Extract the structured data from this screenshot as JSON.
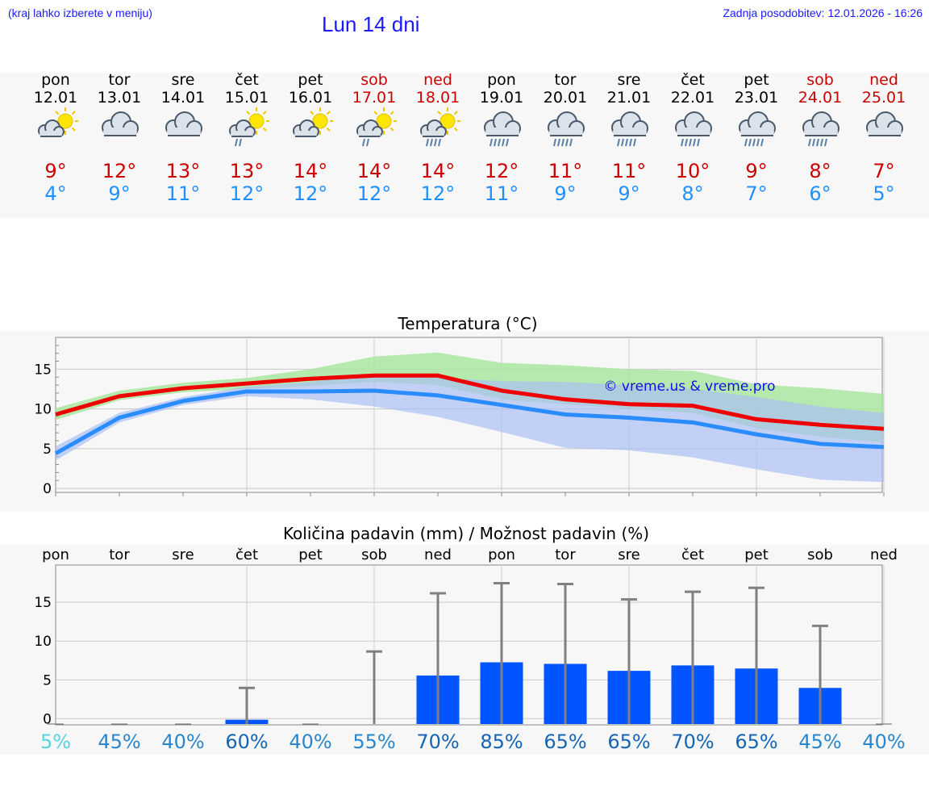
{
  "header": {
    "hint": "(kraj lahko izberete v meniju)",
    "title": "Lun 14 dni",
    "updated": "Zadnja posodobitev: 12.01.2026 - 16:26"
  },
  "days": [
    {
      "name": "pon",
      "date": "12.01",
      "icon": "partly-sunny-cloud-icon",
      "max": "9°",
      "min": "4°",
      "weekend": false
    },
    {
      "name": "tor",
      "date": "13.01",
      "icon": "cloudy-icon",
      "max": "12°",
      "min": "9°",
      "weekend": false
    },
    {
      "name": "sre",
      "date": "14.01",
      "icon": "cloudy-icon",
      "max": "13°",
      "min": "11°",
      "weekend": false
    },
    {
      "name": "čet",
      "date": "15.01",
      "icon": "sun-cloud-light-rain-icon",
      "max": "13°",
      "min": "12°",
      "weekend": false
    },
    {
      "name": "pet",
      "date": "16.01",
      "icon": "partly-sunny-cloud-icon",
      "max": "14°",
      "min": "12°",
      "weekend": false
    },
    {
      "name": "sob",
      "date": "17.01",
      "icon": "sun-cloud-light-rain-icon",
      "max": "14°",
      "min": "12°",
      "weekend": true
    },
    {
      "name": "ned",
      "date": "18.01",
      "icon": "sun-cloud-rain-icon",
      "max": "14°",
      "min": "12°",
      "weekend": true
    },
    {
      "name": "pon",
      "date": "19.01",
      "icon": "cloud-rain-icon",
      "max": "12°",
      "min": "11°",
      "weekend": false
    },
    {
      "name": "tor",
      "date": "20.01",
      "icon": "cloud-rain-icon",
      "max": "11°",
      "min": "9°",
      "weekend": false
    },
    {
      "name": "sre",
      "date": "21.01",
      "icon": "cloud-rain-icon",
      "max": "11°",
      "min": "9°",
      "weekend": false
    },
    {
      "name": "čet",
      "date": "22.01",
      "icon": "cloud-rain-icon",
      "max": "10°",
      "min": "8°",
      "weekend": false
    },
    {
      "name": "pet",
      "date": "23.01",
      "icon": "cloud-rain-icon",
      "max": "9°",
      "min": "7°",
      "weekend": false
    },
    {
      "name": "sob",
      "date": "24.01",
      "icon": "cloud-rain-icon",
      "max": "8°",
      "min": "6°",
      "weekend": true
    },
    {
      "name": "ned",
      "date": "25.01",
      "icon": "cloudy-icon",
      "max": "7°",
      "min": "5°",
      "weekend": true
    }
  ],
  "colors": {
    "max_line": "#ee0000",
    "min_line": "#2a8cff",
    "max_band": "#a9e6a1",
    "min_band": "#a9bff2",
    "bar": "#0055ff",
    "error": "#808080",
    "grid": "#c8c8c8",
    "weekend": "#cc0000",
    "min_text": "#1e90ff"
  },
  "chart_data": [
    {
      "type": "line",
      "title": "Temperatura (°C)",
      "watermark": "© vreme.us & vreme.pro",
      "x": [
        0,
        1,
        2,
        3,
        4,
        5,
        6,
        7,
        8,
        9,
        10,
        11,
        12,
        13
      ],
      "ylim": [
        -0.5,
        19
      ],
      "yticks": [
        0,
        5,
        10,
        15
      ],
      "series": [
        {
          "name": "max",
          "values": [
            9.3,
            11.6,
            12.6,
            13.2,
            13.8,
            14.2,
            14.2,
            12.3,
            11.2,
            10.6,
            10.4,
            8.7,
            8.0,
            7.5
          ],
          "band_low": [
            8.6,
            11.1,
            12.1,
            12.5,
            12.9,
            13.4,
            13.0,
            11.2,
            10.6,
            10.0,
            9.5,
            7.6,
            6.5,
            5.8
          ],
          "band_high": [
            10.1,
            12.3,
            13.3,
            13.9,
            15.0,
            16.6,
            17.1,
            15.8,
            15.5,
            15.0,
            14.8,
            13.1,
            12.6,
            11.9
          ]
        },
        {
          "name": "min",
          "values": [
            4.4,
            8.9,
            11.0,
            12.2,
            12.2,
            12.3,
            11.7,
            10.5,
            9.3,
            8.9,
            8.3,
            6.8,
            5.6,
            5.2
          ],
          "band_low": [
            3.5,
            8.3,
            10.5,
            11.6,
            11.2,
            10.3,
            9.0,
            7.1,
            5.1,
            4.8,
            3.9,
            2.4,
            1.1,
            0.8
          ],
          "band_high": [
            5.3,
            9.5,
            11.5,
            12.8,
            13.4,
            14.3,
            13.9,
            13.5,
            13.4,
            13.0,
            12.5,
            11.5,
            10.3,
            9.5
          ]
        }
      ]
    },
    {
      "type": "bar",
      "title": "Količina padavin (mm) / Možnost padavin (%)",
      "categories": [
        "pon",
        "tor",
        "sre",
        "čet",
        "pet",
        "sob",
        "ned",
        "pon",
        "tor",
        "sre",
        "čet",
        "pet",
        "sob",
        "ned"
      ],
      "values": [
        0,
        0,
        0,
        0.9,
        0,
        0.2,
        6.6,
        8.3,
        8.1,
        7.2,
        7.9,
        7.5,
        5.0,
        0
      ],
      "error_high": [
        0,
        0,
        0,
        5.0,
        0,
        9.7,
        17.2,
        18.5,
        18.4,
        16.4,
        17.4,
        17.9,
        13.0,
        0
      ],
      "probability": [
        "5%",
        "45%",
        "40%",
        "60%",
        "40%",
        "55%",
        "70%",
        "85%",
        "65%",
        "65%",
        "70%",
        "65%",
        "45%",
        "40%"
      ],
      "prob_values": [
        5,
        45,
        40,
        60,
        40,
        55,
        70,
        85,
        65,
        65,
        70,
        65,
        45,
        40
      ],
      "ylim": [
        -0.8,
        19.8
      ],
      "yticks": [
        0,
        5,
        10,
        15
      ]
    }
  ]
}
